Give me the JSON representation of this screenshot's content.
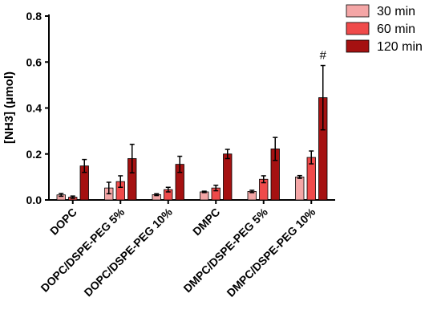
{
  "chart_data": {
    "type": "bar",
    "ylabel": "[NH3] (μmol)",
    "ylim": [
      0,
      0.8
    ],
    "yticks": [
      "0.0",
      "0.2",
      "0.4",
      "0.6",
      "0.8"
    ],
    "categories": [
      "DOPC",
      "DOPC/DSPE-PEG 5%",
      "DOPC/DSPE-PEG 10%",
      "DMPC",
      "DMPC/DSPE-PEG 5%",
      "DMPC/DSPE-PEG 10%"
    ],
    "series": [
      {
        "name": "30 min",
        "color": "#f4a6a6",
        "values": [
          0.022,
          0.052,
          0.023,
          0.035,
          0.037,
          0.1
        ],
        "errors": [
          0.006,
          0.025,
          0.004,
          0.003,
          0.005,
          0.006
        ]
      },
      {
        "name": "60 min",
        "color": "#ef4a4a",
        "values": [
          0.012,
          0.08,
          0.045,
          0.052,
          0.09,
          0.185
        ],
        "errors": [
          0.005,
          0.025,
          0.01,
          0.012,
          0.015,
          0.028
        ]
      },
      {
        "name": "120 min",
        "color": "#a51111",
        "values": [
          0.148,
          0.18,
          0.155,
          0.2,
          0.222,
          0.445
        ],
        "errors": [
          0.028,
          0.062,
          0.035,
          0.02,
          0.05,
          0.14
        ]
      }
    ],
    "legend_position": "top-right",
    "annotations": [
      {
        "category": "DMPC/DSPE-PEG 10%",
        "series": "120 min",
        "text": "#"
      }
    ]
  }
}
